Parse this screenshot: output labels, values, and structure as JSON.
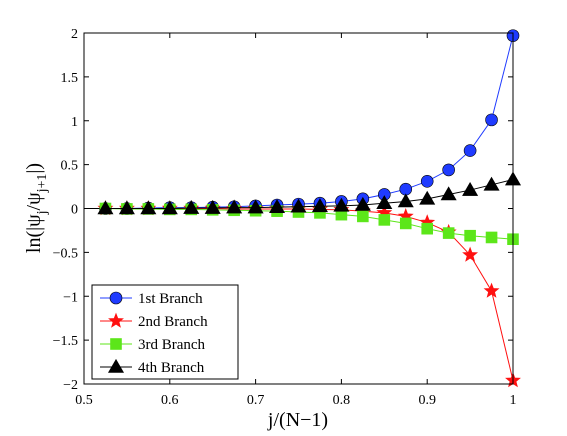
{
  "chart_data": {
    "type": "line",
    "xlabel": "j/(N−1)",
    "ylabel_main": "ln(|ψ",
    "ylabel_sub1": "j",
    "ylabel_mid": "/ψ",
    "ylabel_sub2": "j+1",
    "ylabel_end": "|)",
    "xlim": [
      0.5,
      1.0
    ],
    "ylim": [
      -2,
      2
    ],
    "xticks": [
      0.5,
      0.6,
      0.7,
      0.8,
      0.9,
      1.0
    ],
    "xtick_labels": [
      "0.5",
      "0.6",
      "0.7",
      "0.8",
      "0.9",
      "1"
    ],
    "yticks": [
      -2,
      -1.5,
      -1,
      -0.5,
      0,
      0.5,
      1,
      1.5,
      2
    ],
    "ytick_labels": [
      "−2",
      "−1.5",
      "−1",
      "−0.5",
      "0",
      "0.5",
      "1",
      "1.5",
      "2"
    ],
    "grid": false,
    "legend_position": "bottom-left",
    "x": [
      0.525,
      0.55,
      0.575,
      0.6,
      0.625,
      0.65,
      0.675,
      0.7,
      0.725,
      0.75,
      0.775,
      0.8,
      0.825,
      0.85,
      0.875,
      0.9,
      0.925,
      0.95,
      0.975,
      1.0
    ],
    "series": [
      {
        "name": "1st Branch",
        "color": "#1f3bff",
        "marker": "circle",
        "values": [
          0.0,
          0.0,
          0.005,
          0.01,
          0.01,
          0.015,
          0.02,
          0.03,
          0.04,
          0.05,
          0.06,
          0.08,
          0.11,
          0.16,
          0.22,
          0.31,
          0.44,
          0.66,
          1.01,
          1.97
        ]
      },
      {
        "name": "2nd Branch",
        "color": "#ff1010",
        "marker": "star",
        "values": [
          0.0,
          0.0,
          0.0,
          0.0,
          0.0,
          0.0,
          -0.005,
          -0.005,
          -0.005,
          -0.005,
          -0.01,
          -0.015,
          -0.03,
          -0.05,
          -0.09,
          -0.16,
          -0.27,
          -0.53,
          -0.94,
          -1.96
        ]
      },
      {
        "name": "3rd Branch",
        "color": "#5ce619",
        "marker": "square",
        "values": [
          0.0,
          -0.005,
          -0.005,
          -0.01,
          -0.01,
          -0.015,
          -0.02,
          -0.025,
          -0.03,
          -0.04,
          -0.05,
          -0.07,
          -0.09,
          -0.13,
          -0.17,
          -0.23,
          -0.28,
          -0.31,
          -0.33,
          -0.35
        ]
      },
      {
        "name": "4th Branch",
        "color": "#000000",
        "marker": "triangle",
        "values": [
          0.0,
          0.0,
          0.0,
          0.0,
          0.005,
          0.005,
          0.01,
          0.01,
          0.015,
          0.02,
          0.025,
          0.03,
          0.04,
          0.06,
          0.08,
          0.11,
          0.16,
          0.21,
          0.27,
          0.33
        ]
      }
    ]
  }
}
